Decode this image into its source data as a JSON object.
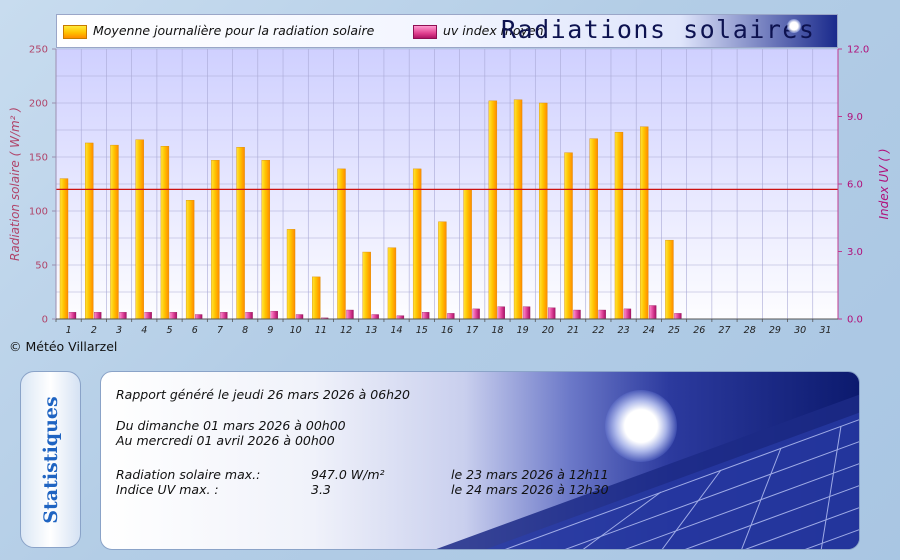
{
  "chart_data": {
    "type": "bar",
    "title": "Radiations solaires",
    "categories": [
      "1",
      "2",
      "3",
      "4",
      "5",
      "6",
      "7",
      "8",
      "9",
      "10",
      "11",
      "12",
      "13",
      "14",
      "15",
      "16",
      "17",
      "18",
      "19",
      "20",
      "21",
      "22",
      "23",
      "24",
      "25",
      "26",
      "27",
      "28",
      "29",
      "30",
      "31"
    ],
    "series": [
      {
        "name": "Moyenne journalière pour la radiation solaire",
        "axis": "left",
        "values": [
          130,
          163,
          161,
          166,
          160,
          110,
          147,
          159,
          147,
          83,
          39,
          139,
          62,
          66,
          139,
          90,
          120,
          202,
          203,
          200,
          154,
          167,
          173,
          178,
          73,
          null,
          null,
          null,
          null,
          null,
          null
        ],
        "color": "#ffb300"
      },
      {
        "name": "uv index moyen",
        "axis": "right",
        "values": [
          0.3,
          0.3,
          0.3,
          0.3,
          0.3,
          0.2,
          0.3,
          0.3,
          0.35,
          0.2,
          0.05,
          0.4,
          0.2,
          0.15,
          0.3,
          0.25,
          0.45,
          0.55,
          0.55,
          0.5,
          0.4,
          0.4,
          0.45,
          0.6,
          0.25,
          null,
          null,
          null,
          null,
          null,
          null
        ],
        "color": "#d6338a"
      }
    ],
    "ylabel": "Radiation solaire ( W/m² )",
    "ylabel_right": "Index UV ( )",
    "ylim": [
      0,
      250
    ],
    "ylim_right": [
      0,
      12
    ],
    "yticks": [
      "0",
      "50",
      "100",
      "150",
      "200",
      "250"
    ],
    "yticks_right": [
      "0.0",
      "3.0",
      "6.0",
      "9.0",
      "12.0"
    ],
    "reference_line": 120,
    "reference_line_color": "#cc1111",
    "grid": true,
    "legend_placement": "top"
  },
  "copyright": "© Météo Villarzel",
  "stats": {
    "side_label": "Statistiques",
    "report_line": "Rapport généré le jeudi 26 mars 2026 à 06h20",
    "period_from": "Du dimanche 01 mars 2026 à 00h00",
    "period_to": "Au mercredi 01 avril 2026 à 00h00",
    "rows": [
      {
        "label": "Radiation solaire max.:",
        "value": "947.0 W/m²",
        "when": "le 23 mars 2026 à 12h11"
      },
      {
        "label": "Indice UV max. :",
        "value": "3.3",
        "when": "le 24 mars 2026 à 12h30"
      }
    ]
  },
  "colors": {
    "plot_bg_top": "#cfd0ff",
    "plot_bg_bottom": "#fdfdff",
    "left_axis_text": "#b0456a",
    "right_axis_text": "#b0107a",
    "title": "#0d1250",
    "stat_side_text": "#1f64c2"
  }
}
